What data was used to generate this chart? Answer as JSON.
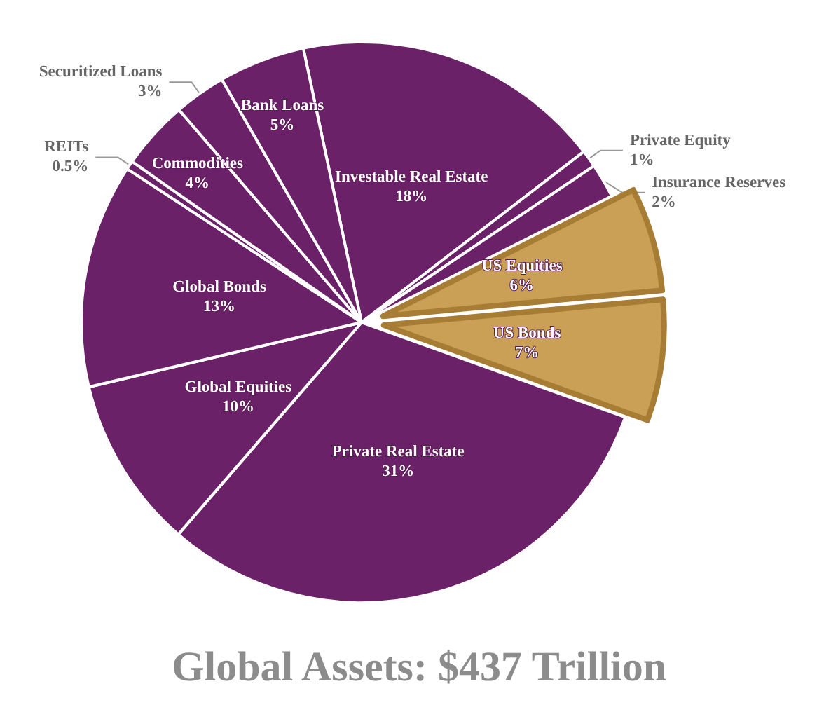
{
  "chart_data": {
    "type": "pie",
    "title": "Global Assets: $437 Trillion",
    "categories": [
      "Investable Real Estate",
      "Private Equity",
      "Insurance Reserves",
      "US Equities",
      "US Bonds",
      "Private Real Estate",
      "Global Equities",
      "Global Bonds",
      "REITs",
      "Commodities",
      "Securitized Loans",
      "Bank Loans"
    ],
    "values": [
      18,
      1,
      2,
      6,
      7,
      31,
      10,
      13,
      0.5,
      4,
      3,
      5
    ],
    "value_labels": [
      "18%",
      "1%",
      "2%",
      "6%",
      "7%",
      "31%",
      "10%",
      "13%",
      "0.5%",
      "4%",
      "3%",
      "5%"
    ],
    "colors": [
      "#6b2167",
      "#6b2167",
      "#6b2167",
      "#c9a055",
      "#c9a055",
      "#6b2167",
      "#6b2167",
      "#6b2167",
      "#6b2167",
      "#6b2167",
      "#6b2167",
      "#6b2167"
    ],
    "legend": false
  }
}
